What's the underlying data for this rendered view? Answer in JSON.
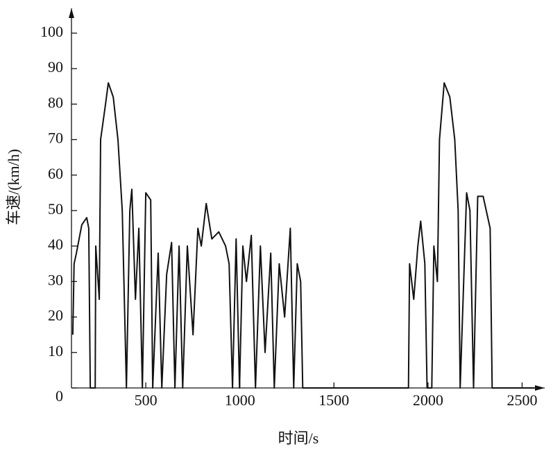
{
  "chart_data": {
    "type": "line",
    "xlabel": "时间/s",
    "ylabel": "车速/(km/h)",
    "color": "#111111",
    "x": [
      112,
      119,
      131,
      160,
      186,
      197,
      205,
      231,
      234,
      253,
      260,
      286,
      301,
      327,
      352,
      375,
      397,
      415,
      426,
      445,
      463,
      482,
      500,
      526,
      537,
      566,
      585,
      611,
      637,
      655,
      677,
      696,
      721,
      751,
      777,
      795,
      821,
      851,
      888,
      924,
      943,
      961,
      980,
      998,
      1016,
      1035,
      1061,
      1083,
      1109,
      1134,
      1164,
      1183,
      1209,
      1238,
      1268,
      1286,
      1305,
      1323,
      1334,
      1896,
      1902,
      1924,
      1946,
      1961,
      1983,
      1995,
      2020,
      2031,
      2050,
      2061,
      2086,
      2116,
      2142,
      2160,
      2171,
      2205,
      2223,
      2242,
      2264,
      2293,
      2330,
      2341,
      2566
    ],
    "values": [
      15,
      35,
      38,
      46,
      48,
      45,
      0,
      0,
      40,
      25,
      70,
      80,
      86,
      82,
      70,
      50,
      0,
      50,
      56,
      25,
      45,
      0,
      55,
      53,
      0,
      38,
      0,
      32,
      41,
      0,
      40,
      0,
      40,
      15,
      45,
      40,
      52,
      42,
      44,
      40,
      35,
      0,
      42,
      0,
      40,
      30,
      43,
      0,
      40,
      10,
      38,
      0,
      35,
      20,
      45,
      0,
      35,
      30,
      0,
      0,
      35,
      25,
      40,
      47,
      35,
      0,
      0,
      40,
      30,
      70,
      86,
      82,
      70,
      50,
      0,
      55,
      50,
      0,
      54,
      54,
      45,
      0,
      0
    ],
    "xlim": [
      105,
      2620
    ],
    "ylim": [
      0,
      107
    ],
    "xticks": [
      500,
      1000,
      1500,
      2000,
      2500
    ],
    "yticks": [
      0,
      10,
      20,
      30,
      40,
      50,
      60,
      70,
      80,
      90,
      100
    ]
  }
}
